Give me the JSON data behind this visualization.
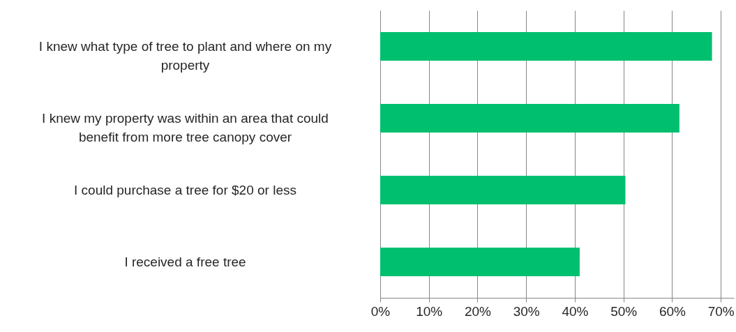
{
  "chart_data": {
    "type": "bar",
    "orientation": "horizontal",
    "categories": [
      "I knew what type of tree to plant and where on my property",
      "I knew my property was within an area that could benefit from more tree canopy cover",
      "I could purchase a tree for $20 or less",
      "I received a free tree"
    ],
    "values": [
      68.2,
      61.5,
      50.4,
      41.0
    ],
    "color": "#00bf6f",
    "xlim": [
      0,
      72.7
    ],
    "xticks": [
      {
        "value": 0,
        "label": "0%"
      },
      {
        "value": 10,
        "label": "10%"
      },
      {
        "value": 20,
        "label": "20%"
      },
      {
        "value": 30,
        "label": "30%"
      },
      {
        "value": 40,
        "label": "40%"
      },
      {
        "value": 50,
        "label": "50%"
      },
      {
        "value": 60,
        "label": "60%"
      },
      {
        "value": 70,
        "label": "70%"
      }
    ],
    "grid": "x"
  }
}
